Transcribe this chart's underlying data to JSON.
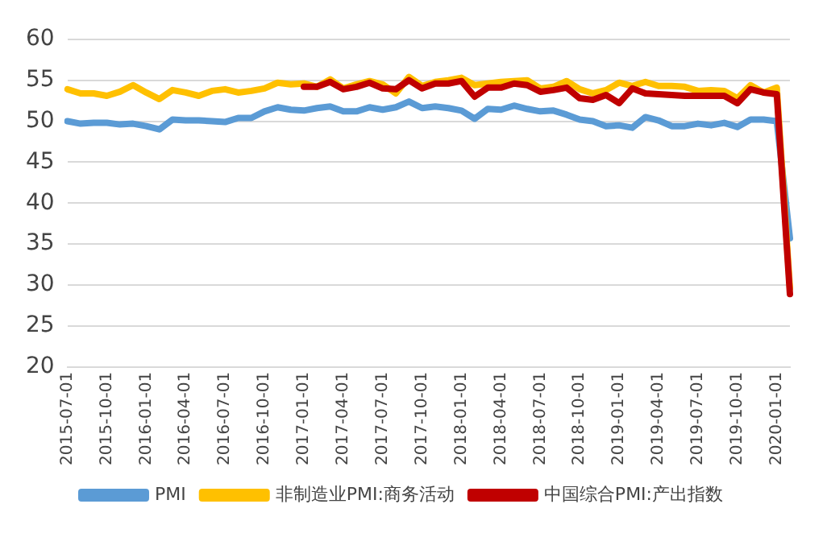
{
  "chart_data": {
    "type": "line",
    "categories": [
      "2015-07-01",
      null,
      null,
      "2015-10-01",
      null,
      null,
      "2016-01-01",
      null,
      null,
      "2016-04-01",
      null,
      null,
      "2016-07-01",
      null,
      null,
      "2016-10-01",
      null,
      null,
      "2017-01-01",
      null,
      null,
      "2017-04-01",
      null,
      null,
      "2017-07-01",
      null,
      null,
      "2017-10-01",
      null,
      null,
      "2018-01-01",
      null,
      null,
      "2018-04-01",
      null,
      null,
      "2018-07-01",
      null,
      null,
      "2018-10-01",
      null,
      null,
      "2019-01-01",
      null,
      null,
      "2019-04-01",
      null,
      null,
      "2019-07-01",
      null,
      null,
      "2019-10-01",
      null,
      null,
      "2020-01-01",
      null
    ],
    "series": [
      {
        "name": "PMI",
        "color": "#5b9bd5",
        "values": [
          50.0,
          49.7,
          49.8,
          49.8,
          49.6,
          49.7,
          49.4,
          49.0,
          50.2,
          50.1,
          50.1,
          50.0,
          49.9,
          50.4,
          50.4,
          51.2,
          51.7,
          51.4,
          51.3,
          51.6,
          51.8,
          51.2,
          51.2,
          51.7,
          51.4,
          51.7,
          52.4,
          51.6,
          51.8,
          51.6,
          51.3,
          50.3,
          51.5,
          51.4,
          51.9,
          51.5,
          51.2,
          51.3,
          50.8,
          50.2,
          50.0,
          49.4,
          49.5,
          49.2,
          50.5,
          50.1,
          49.4,
          49.4,
          49.7,
          49.5,
          49.8,
          49.3,
          50.2,
          50.2,
          50.0,
          35.7
        ]
      },
      {
        "name": "非制造业PMI:商务活动",
        "color": "#ffc000",
        "values": [
          53.9,
          53.4,
          53.4,
          53.1,
          53.6,
          54.4,
          53.5,
          52.7,
          53.8,
          53.5,
          53.1,
          53.7,
          53.9,
          53.5,
          53.7,
          54.0,
          54.7,
          54.5,
          54.6,
          54.2,
          55.1,
          54.0,
          54.5,
          54.9,
          54.5,
          53.4,
          55.4,
          54.3,
          54.8,
          55.0,
          55.3,
          54.4,
          54.6,
          54.8,
          54.9,
          55.0,
          54.0,
          54.2,
          54.9,
          53.9,
          53.4,
          53.8,
          54.7,
          54.3,
          54.8,
          54.3,
          54.3,
          54.2,
          53.7,
          53.8,
          53.7,
          52.8,
          54.4,
          53.5,
          54.1,
          29.6
        ]
      },
      {
        "name": "中国综合PMI:产出指数",
        "color": "#c00000",
        "values": [
          null,
          null,
          null,
          null,
          null,
          null,
          null,
          null,
          null,
          null,
          null,
          null,
          null,
          null,
          null,
          null,
          null,
          null,
          54.2,
          54.2,
          54.8,
          53.9,
          54.2,
          54.7,
          54.0,
          53.9,
          55.0,
          54.0,
          54.6,
          54.6,
          54.9,
          53.0,
          54.1,
          54.1,
          54.6,
          54.4,
          53.6,
          53.8,
          54.1,
          52.8,
          52.6,
          53.2,
          52.2,
          54.0,
          53.4,
          53.3,
          53.2,
          53.1,
          53.1,
          53.1,
          53.1,
          52.2,
          53.9,
          53.5,
          53.3,
          28.9
        ]
      }
    ],
    "ylim": [
      20,
      60
    ],
    "yticks": [
      20,
      25,
      30,
      35,
      40,
      45,
      50,
      55,
      60
    ],
    "grid": "y",
    "legend": "bottom",
    "marker": "none",
    "line_style": "solid"
  }
}
